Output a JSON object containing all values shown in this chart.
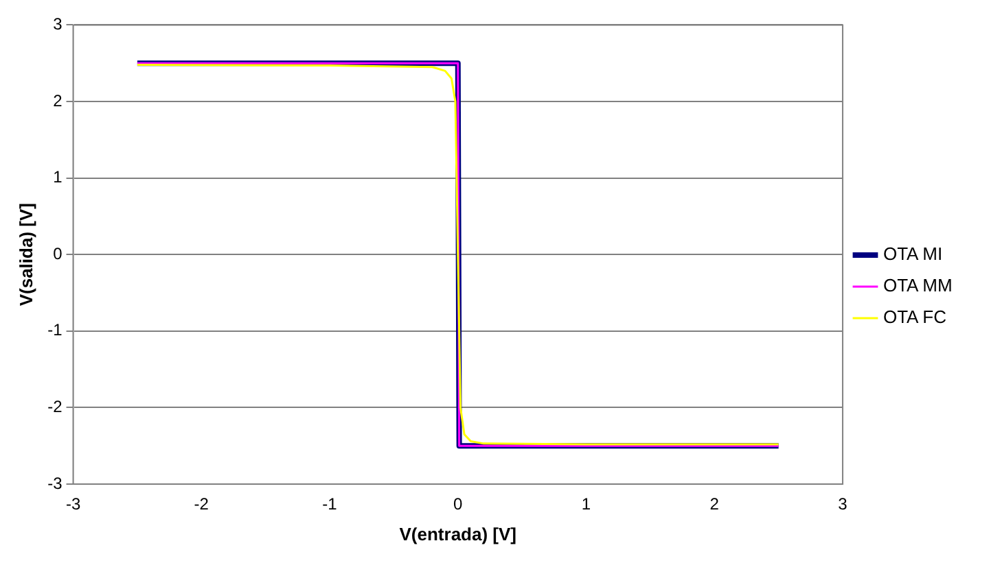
{
  "chart_data": {
    "type": "line",
    "xlabel": "V(entrada) [V]",
    "ylabel": "V(salida) [V]",
    "xlim": [
      -3,
      3
    ],
    "xticks": [
      -3,
      -2,
      -1,
      0,
      1,
      2,
      3
    ],
    "ylim": [
      -3,
      3
    ],
    "yticks": [
      -3,
      -2,
      -1,
      0,
      1,
      2,
      3
    ],
    "grid": "y",
    "legend": "right",
    "marker": "none",
    "line_style": "solid",
    "series": [
      {
        "name": "OTA MI",
        "color": "#000080",
        "x": [
          -2.5,
          -1,
          0,
          0.01,
          1,
          2.5
        ],
        "values": [
          2.5,
          2.5,
          2.5,
          -2.5,
          -2.5,
          -2.5
        ]
      },
      {
        "name": "OTA MM",
        "color": "#ff00ff",
        "x": [
          -2.5,
          -1,
          0,
          0.01,
          1,
          2.5
        ],
        "values": [
          2.5,
          2.5,
          2.5,
          -2.5,
          -2.5,
          -2.5
        ]
      },
      {
        "name": "OTA FC",
        "color": "#ffff00",
        "x": [
          -2.5,
          -1,
          -0.2,
          -0.1,
          -0.05,
          -0.02,
          0,
          0.02,
          0.05,
          0.1,
          0.2,
          1,
          2.5
        ],
        "values": [
          2.48,
          2.47,
          2.45,
          2.4,
          2.3,
          2.0,
          0,
          -2.0,
          -2.35,
          -2.44,
          -2.47,
          -2.48,
          -2.48
        ]
      }
    ]
  }
}
